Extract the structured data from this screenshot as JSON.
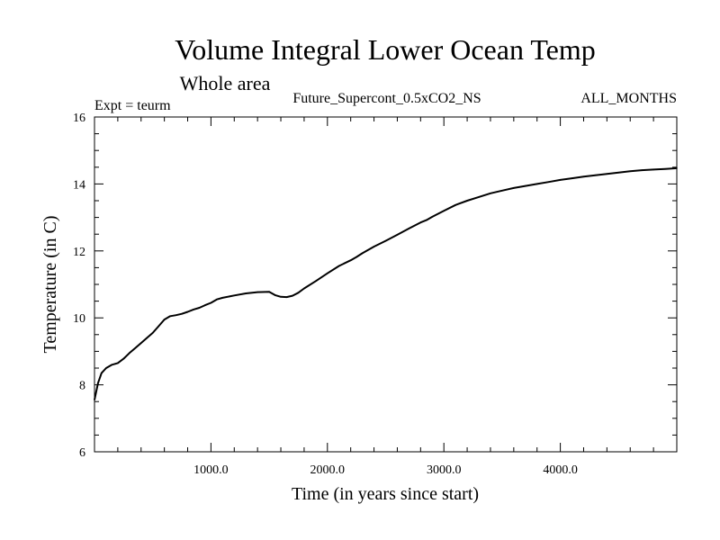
{
  "chart_data": {
    "type": "line",
    "title": "Volume Integral Lower Ocean Temp",
    "subtitle": "Whole area",
    "header_left": "Expt = teurm",
    "header_center": "Future_Supercont_0.5xCO2_NS",
    "header_right": "ALL_MONTHS",
    "xlabel": "Time (in years since start)",
    "ylabel": "Temperature (in C)",
    "xlim": [
      0,
      5000
    ],
    "ylim": [
      6,
      16
    ],
    "x_ticks": [
      1000,
      2000,
      3000,
      4000
    ],
    "x_tick_labels": [
      "1000.0",
      "2000.0",
      "3000.0",
      "4000.0"
    ],
    "y_ticks": [
      6,
      8,
      10,
      12,
      14,
      16
    ],
    "y_tick_labels": [
      "6",
      "8",
      "10",
      "12",
      "14",
      "16"
    ],
    "grid": false,
    "line_color": "#000000",
    "series": [
      {
        "x": [
          0,
          30,
          60,
          100,
          150,
          200,
          250,
          300,
          350,
          400,
          450,
          500,
          550,
          600,
          650,
          700,
          750,
          800,
          850,
          900,
          950,
          1000,
          1050,
          1100,
          1200,
          1300,
          1400,
          1500,
          1550,
          1600,
          1650,
          1700,
          1750,
          1800,
          1900,
          2000,
          2100,
          2200,
          2250,
          2300,
          2400,
          2500,
          2600,
          2700,
          2800,
          2850,
          2900,
          3000,
          3100,
          3200,
          3300,
          3400,
          3500,
          3600,
          3700,
          3800,
          3900,
          4000,
          4100,
          4200,
          4300,
          4400,
          4500,
          4600,
          4700,
          4800,
          4900,
          5000
        ],
        "y": [
          7.55,
          8.05,
          8.35,
          8.5,
          8.6,
          8.65,
          8.78,
          8.95,
          9.1,
          9.25,
          9.4,
          9.55,
          9.75,
          9.95,
          10.05,
          10.08,
          10.12,
          10.18,
          10.25,
          10.3,
          10.38,
          10.45,
          10.55,
          10.6,
          10.67,
          10.73,
          10.77,
          10.78,
          10.68,
          10.63,
          10.62,
          10.66,
          10.75,
          10.88,
          11.1,
          11.33,
          11.55,
          11.72,
          11.82,
          11.93,
          12.13,
          12.3,
          12.48,
          12.67,
          12.85,
          12.92,
          13.02,
          13.2,
          13.37,
          13.5,
          13.61,
          13.72,
          13.8,
          13.88,
          13.94,
          14.0,
          14.06,
          14.12,
          14.17,
          14.22,
          14.26,
          14.3,
          14.34,
          14.38,
          14.41,
          14.43,
          14.45,
          14.47
        ]
      }
    ]
  }
}
